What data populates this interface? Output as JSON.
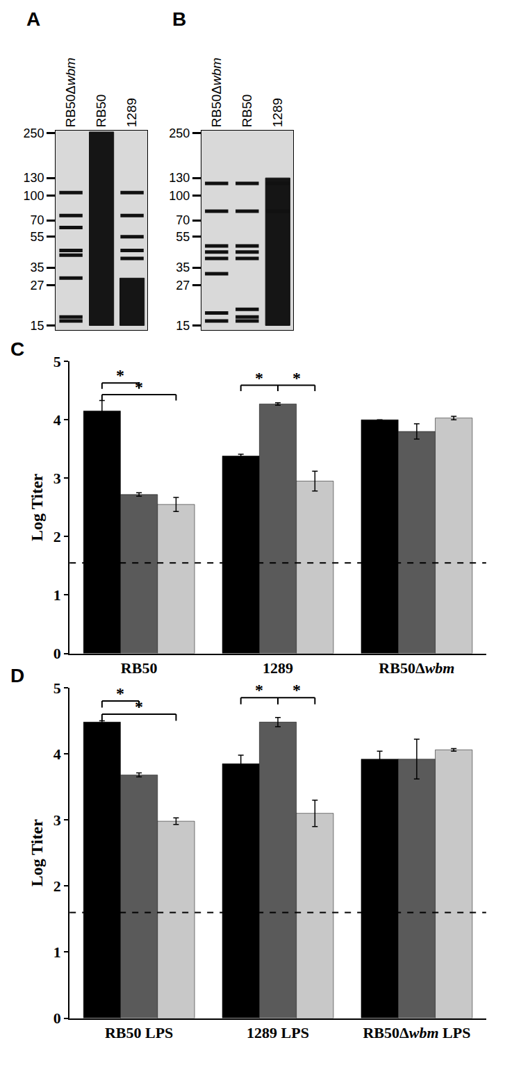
{
  "chart_data": [
    {
      "type": "blot",
      "panel": "A",
      "lanes": [
        "RB50Δwbm",
        "RB50",
        "1289"
      ],
      "log": "y",
      "ylim": [
        14,
        260
      ],
      "yticks": [
        15,
        27,
        35,
        55,
        70,
        100,
        130,
        250
      ],
      "lane_data": [
        {
          "bands": [
            105,
            75,
            63,
            45,
            42,
            30,
            17,
            16
          ]
        },
        {
          "bands": [],
          "smear": [
            15,
            255
          ]
        },
        {
          "bands": [
            105,
            75,
            55,
            45,
            40
          ],
          "smear": [
            15,
            30
          ]
        }
      ]
    },
    {
      "type": "blot",
      "panel": "B",
      "lanes": [
        "RB50Δwbm",
        "RB50",
        "1289"
      ],
      "log": "y",
      "ylim": [
        14,
        260
      ],
      "yticks": [
        15,
        27,
        35,
        55,
        70,
        100,
        130,
        250
      ],
      "lane_data": [
        {
          "bands": [
            120,
            80,
            48,
            44,
            40,
            32,
            18,
            16
          ]
        },
        {
          "bands": [
            120,
            80,
            48,
            44,
            40,
            19,
            17,
            16
          ]
        },
        {
          "bands": [
            120,
            80
          ],
          "smear": [
            15,
            130
          ]
        }
      ]
    },
    {
      "type": "bar",
      "panel": "C",
      "categories": [
        "RB50",
        "1289",
        "RB50Δwbm"
      ],
      "ylabel": "Log Titer",
      "ylim": [
        0,
        5
      ],
      "yticks": [
        0,
        1,
        2,
        3,
        4,
        5
      ],
      "series": [
        {
          "color": "#000000",
          "values": [
            4.15,
            3.38,
            4.0
          ],
          "errors": [
            0.18,
            0.03,
            0.0
          ]
        },
        {
          "color": "#5a5a5a",
          "values": [
            2.72,
            4.27,
            3.8
          ],
          "errors": [
            0.03,
            0.02,
            0.13
          ]
        },
        {
          "color": "#c8c8c8",
          "values": [
            2.55,
            2.95,
            4.03
          ],
          "errors": [
            0.12,
            0.17,
            0.03
          ]
        }
      ],
      "detection_limit": 1.55,
      "significance": [
        {
          "category": 0,
          "pair": [
            0,
            1
          ],
          "label": "*"
        },
        {
          "category": 0,
          "pair": [
            0,
            2
          ],
          "label": "*"
        },
        {
          "category": 1,
          "pair": [
            0,
            1
          ],
          "label": "*"
        },
        {
          "category": 1,
          "pair": [
            1,
            2
          ],
          "label": "*"
        }
      ]
    },
    {
      "type": "bar",
      "panel": "D",
      "categories": [
        "RB50 LPS",
        "1289 LPS",
        "RB50Δwbm LPS"
      ],
      "ylabel": "Log Titer",
      "ylim": [
        0,
        5
      ],
      "yticks": [
        0,
        1,
        2,
        3,
        4,
        5
      ],
      "series": [
        {
          "color": "#000000",
          "values": [
            4.48,
            3.85,
            3.92
          ],
          "errors": [
            0.02,
            0.13,
            0.12
          ]
        },
        {
          "color": "#5a5a5a",
          "values": [
            3.68,
            4.48,
            3.92
          ],
          "errors": [
            0.03,
            0.07,
            0.3
          ]
        },
        {
          "color": "#c8c8c8",
          "values": [
            2.98,
            3.1,
            4.06
          ],
          "errors": [
            0.05,
            0.2,
            0.02
          ]
        }
      ],
      "detection_limit": 1.6,
      "significance": [
        {
          "category": 0,
          "pair": [
            0,
            1
          ],
          "label": "*"
        },
        {
          "category": 0,
          "pair": [
            0,
            2
          ],
          "label": "*"
        },
        {
          "category": 1,
          "pair": [
            0,
            1
          ],
          "label": "*"
        },
        {
          "category": 1,
          "pair": [
            1,
            2
          ],
          "label": "*"
        }
      ]
    }
  ]
}
